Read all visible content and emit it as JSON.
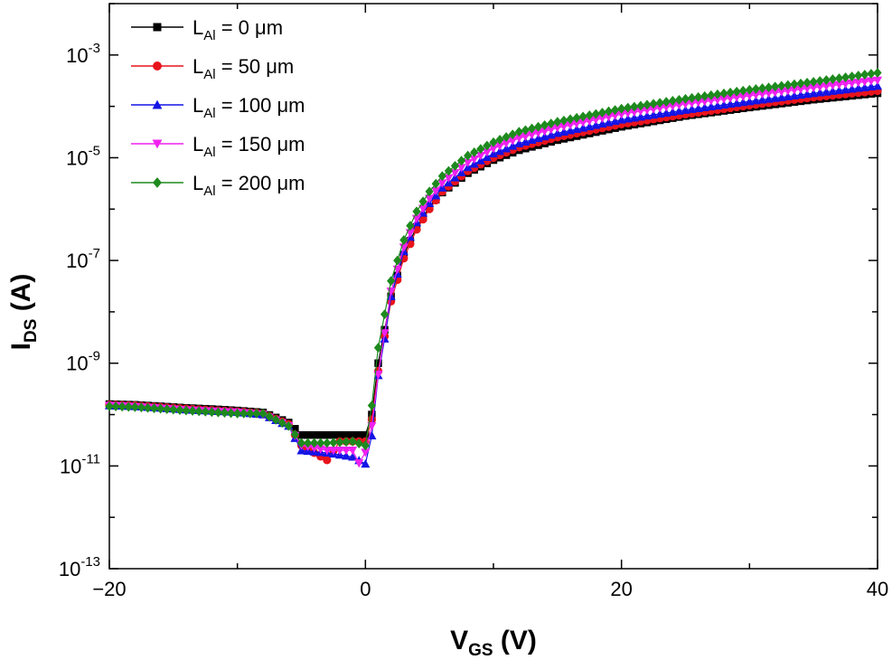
{
  "chart_data": {
    "type": "scatter",
    "title": "",
    "xlabel": {
      "main": "V",
      "sub": "GS",
      "unit": " (V)"
    },
    "ylabel": {
      "main": "I",
      "sub": "DS",
      "unit": " (A)"
    },
    "x_scale": "linear",
    "y_scale": "log",
    "xlim": [
      -20,
      40
    ],
    "ylim": [
      1e-13,
      0.01
    ],
    "x_ticks": [
      {
        "value": -20,
        "label": "−20"
      },
      {
        "value": 0,
        "label": "0"
      },
      {
        "value": 20,
        "label": "20"
      },
      {
        "value": 40,
        "label": "40"
      }
    ],
    "y_ticks": [
      {
        "exp": -3,
        "base": "10",
        "sup": "-3"
      },
      {
        "exp": -5,
        "base": "10",
        "sup": "-5"
      },
      {
        "exp": -7,
        "base": "10",
        "sup": "-7"
      },
      {
        "exp": -9,
        "base": "10",
        "sup": "-9"
      },
      {
        "exp": -11,
        "base": "10",
        "sup": "-11"
      },
      {
        "exp": -13,
        "base": "10",
        "sup": "-13"
      }
    ],
    "grid": false,
    "legend_position": "top-left",
    "series": [
      {
        "legend": {
          "main": "L",
          "sub": "Al",
          "rest": " = 0   μm"
        },
        "color": "#000000",
        "marker": "square",
        "points": [
          [
            -20,
            1.6e-10
          ],
          [
            -18,
            1.55e-10
          ],
          [
            -16,
            1.45e-10
          ],
          [
            -14,
            1.35e-10
          ],
          [
            -12,
            1.28e-10
          ],
          [
            -10,
            1.2e-10
          ],
          [
            -8,
            1.1e-10
          ],
          [
            -6,
            7e-11
          ],
          [
            -5,
            4e-11
          ],
          [
            -4,
            4e-11
          ],
          [
            -2,
            4e-11
          ],
          [
            0,
            4e-11
          ],
          [
            0.5,
            1e-10
          ],
          [
            1,
            1e-09
          ],
          [
            2,
            2e-08
          ],
          [
            3,
            1.3e-07
          ],
          [
            4,
            4.5e-07
          ],
          [
            5,
            1.1e-06
          ],
          [
            6,
            2.1e-06
          ],
          [
            8,
            5e-06
          ],
          [
            10,
            9e-06
          ],
          [
            12,
            1.4e-05
          ],
          [
            15,
            2.2e-05
          ],
          [
            20,
            4e-05
          ],
          [
            25,
            6.5e-05
          ],
          [
            30,
            9.5e-05
          ],
          [
            35,
            0.000135
          ],
          [
            40,
            0.00018
          ]
        ]
      },
      {
        "legend": {
          "main": "L",
          "sub": "Al",
          "rest": " = 50  μm"
        },
        "color": "#e8141c",
        "marker": "circle",
        "points": [
          [
            -20,
            1.55e-10
          ],
          [
            -18,
            1.5e-10
          ],
          [
            -16,
            1.4e-10
          ],
          [
            -14,
            1.3e-10
          ],
          [
            -12,
            1.22e-10
          ],
          [
            -10,
            1.15e-10
          ],
          [
            -8,
            1.05e-10
          ],
          [
            -6,
            6.5e-11
          ],
          [
            -5,
            2.5e-11
          ],
          [
            -3,
            1.3e-11
          ],
          [
            -2,
            3e-11
          ],
          [
            0,
            3e-11
          ],
          [
            0.5,
            8e-11
          ],
          [
            1,
            7e-10
          ],
          [
            2,
            1.6e-08
          ],
          [
            3,
            1.1e-07
          ],
          [
            4,
            4e-07
          ],
          [
            5,
            1e-06
          ],
          [
            6,
            2.2e-06
          ],
          [
            8,
            5.5e-06
          ],
          [
            10,
            1e-05
          ],
          [
            12,
            1.6e-05
          ],
          [
            15,
            2.5e-05
          ],
          [
            20,
            4.5e-05
          ],
          [
            25,
            7e-05
          ],
          [
            30,
            0.000105
          ],
          [
            35,
            0.00015
          ],
          [
            40,
            0.0002
          ]
        ]
      },
      {
        "legend": {
          "main": "L",
          "sub": "Al",
          "rest": " = 100  μm"
        },
        "color": "#1414e6",
        "marker": "triangle-up",
        "points": [
          [
            -20,
            1.5e-10
          ],
          [
            -18,
            1.45e-10
          ],
          [
            -16,
            1.35e-10
          ],
          [
            -14,
            1.25e-10
          ],
          [
            -12,
            1.18e-10
          ],
          [
            -10,
            1.12e-10
          ],
          [
            -8,
            1e-10
          ],
          [
            -6,
            6e-11
          ],
          [
            -5,
            2e-11
          ],
          [
            -3,
            1.8e-11
          ],
          [
            -1,
            1.5e-11
          ],
          [
            0.3,
            1e-11
          ],
          [
            0.8,
            3e-10
          ],
          [
            1.5,
            3e-09
          ],
          [
            2,
            2e-08
          ],
          [
            3,
            1.5e-07
          ],
          [
            4,
            5.5e-07
          ],
          [
            5,
            1.3e-06
          ],
          [
            6,
            2.6e-06
          ],
          [
            8,
            6.5e-06
          ],
          [
            10,
            1.2e-05
          ],
          [
            12,
            1.9e-05
          ],
          [
            15,
            3e-05
          ],
          [
            20,
            5.5e-05
          ],
          [
            25,
            8.5e-05
          ],
          [
            30,
            0.000125
          ],
          [
            35,
            0.00018
          ],
          [
            40,
            0.00025
          ]
        ]
      },
      {
        "legend": {
          "main": "L",
          "sub": "Al",
          "rest": " = 150  μm"
        },
        "color": "#f020f0",
        "marker": "triangle-down",
        "points": [
          [
            -20,
            1.5e-10
          ],
          [
            -18,
            1.42e-10
          ],
          [
            -16,
            1.32e-10
          ],
          [
            -14,
            1.22e-10
          ],
          [
            -12,
            1.15e-10
          ],
          [
            -10,
            1.1e-10
          ],
          [
            -8,
            1e-10
          ],
          [
            -6,
            6e-11
          ],
          [
            -5,
            2.5e-11
          ],
          [
            -3,
            2e-11
          ],
          [
            -1,
            2e-11
          ],
          [
            -0.3,
            9e-12
          ],
          [
            0.5,
            6e-11
          ],
          [
            1,
            6e-10
          ],
          [
            2,
            2.5e-08
          ],
          [
            3,
            1.8e-07
          ],
          [
            4,
            6.5e-07
          ],
          [
            5,
            1.6e-06
          ],
          [
            6,
            3.2e-06
          ],
          [
            8,
            8e-06
          ],
          [
            10,
            1.5e-05
          ],
          [
            12,
            2.4e-05
          ],
          [
            15,
            3.8e-05
          ],
          [
            20,
            7e-05
          ],
          [
            25,
            0.00011
          ],
          [
            30,
            0.00016
          ],
          [
            35,
            0.00023
          ],
          [
            40,
            0.00032
          ]
        ]
      },
      {
        "legend": {
          "main": "L",
          "sub": "Al",
          "rest": " = 200  μm"
        },
        "color": "#1e8a1e",
        "marker": "diamond",
        "points": [
          [
            -20,
            1.45e-10
          ],
          [
            -18,
            1.4e-10
          ],
          [
            -16,
            1.3e-10
          ],
          [
            -14,
            1.2e-10
          ],
          [
            -12,
            1.12e-10
          ],
          [
            -10,
            1.05e-10
          ],
          [
            -8,
            1.05e-10
          ],
          [
            -6,
            6e-11
          ],
          [
            -5,
            2.8e-11
          ],
          [
            -3,
            2.8e-11
          ],
          [
            -1,
            3e-11
          ],
          [
            0,
            2.5e-11
          ],
          [
            0.5,
            1.5e-10
          ],
          [
            1,
            2e-09
          ],
          [
            2,
            4e-08
          ],
          [
            3,
            2.5e-07
          ],
          [
            4,
            9e-07
          ],
          [
            5,
            2.2e-06
          ],
          [
            6,
            4.4e-06
          ],
          [
            8,
            1.1e-05
          ],
          [
            10,
            2e-05
          ],
          [
            12,
            3.2e-05
          ],
          [
            15,
            5e-05
          ],
          [
            20,
            9e-05
          ],
          [
            25,
            0.00014
          ],
          [
            30,
            0.00021
          ],
          [
            35,
            0.0003
          ],
          [
            40,
            0.00045
          ]
        ]
      }
    ]
  }
}
